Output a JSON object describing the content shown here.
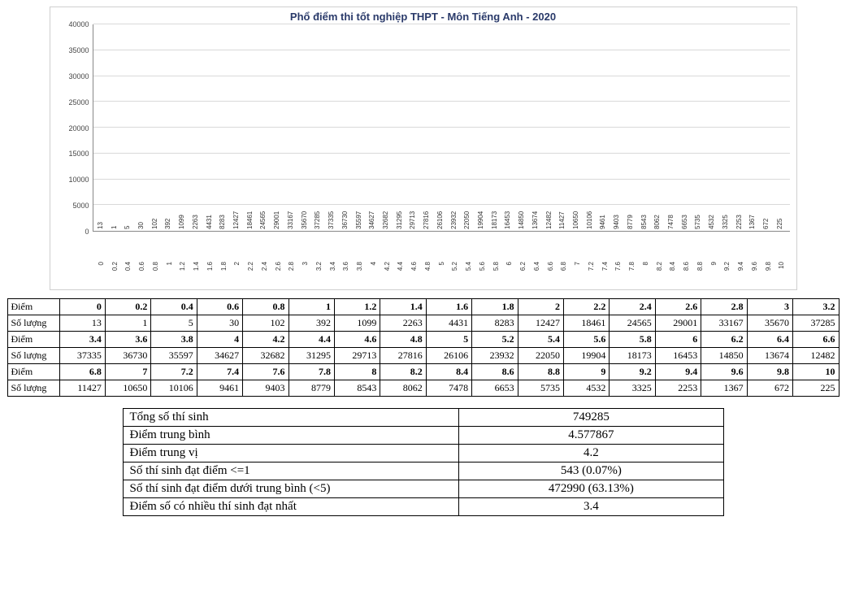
{
  "chart": {
    "title": "Phổ điểm thi tốt nghiệp THPT - Môn Tiếng Anh - 2020",
    "type": "bar",
    "bar_color": "#3f6db5",
    "grid_color": "#d9d9d9",
    "axis_color": "#888888",
    "title_color": "#2a3a6a",
    "background_color": "#ffffff",
    "title_fontsize": 13,
    "label_fontsize": 8,
    "ylim": [
      0,
      40000
    ],
    "ytick_step": 5000,
    "yticks": [
      "0",
      "5000",
      "10000",
      "15000",
      "20000",
      "25000",
      "30000",
      "35000",
      "40000"
    ],
    "x_categories": [
      "0",
      "0.2",
      "0.4",
      "0.6",
      "0.8",
      "1",
      "1.2",
      "1.4",
      "1.6",
      "1.8",
      "2",
      "2.2",
      "2.4",
      "2.6",
      "2.8",
      "3",
      "3.2",
      "3.4",
      "3.6",
      "3.8",
      "4",
      "4.2",
      "4.4",
      "4.6",
      "4.8",
      "5",
      "5.2",
      "5.4",
      "5.6",
      "5.8",
      "6",
      "6.2",
      "6.4",
      "6.6",
      "6.8",
      "7",
      "7.2",
      "7.4",
      "7.6",
      "7.8",
      "8",
      "8.2",
      "8.4",
      "8.6",
      "8.8",
      "9",
      "9.2",
      "9.4",
      "9.6",
      "9.8",
      "10"
    ],
    "values": [
      13,
      1,
      5,
      30,
      102,
      392,
      1099,
      2263,
      4431,
      8283,
      12427,
      18461,
      24565,
      29001,
      33167,
      35670,
      37285,
      37335,
      36730,
      35597,
      34627,
      32682,
      31295,
      29713,
      27816,
      26106,
      23932,
      22050,
      19904,
      18173,
      16453,
      14850,
      13674,
      12482,
      11427,
      10650,
      10106,
      9461,
      9403,
      8779,
      8543,
      8062,
      7478,
      6653,
      5735,
      4532,
      3325,
      2253,
      1367,
      672,
      225
    ]
  },
  "data_table": {
    "row_labels": {
      "score": "Điểm",
      "count": "Số lượng"
    },
    "groups": [
      {
        "scores": [
          "0",
          "0.2",
          "0.4",
          "0.6",
          "0.8",
          "1",
          "1.2",
          "1.4",
          "1.6",
          "1.8",
          "2",
          "2.2",
          "2.4",
          "2.6",
          "2.8",
          "3",
          "3.2"
        ],
        "counts": [
          "13",
          "1",
          "5",
          "30",
          "102",
          "392",
          "1099",
          "2263",
          "4431",
          "8283",
          "12427",
          "18461",
          "24565",
          "29001",
          "33167",
          "35670",
          "37285"
        ]
      },
      {
        "scores": [
          "3.4",
          "3.6",
          "3.8",
          "4",
          "4.2",
          "4.4",
          "4.6",
          "4.8",
          "5",
          "5.2",
          "5.4",
          "5.6",
          "5.8",
          "6",
          "6.2",
          "6.4",
          "6.6"
        ],
        "counts": [
          "37335",
          "36730",
          "35597",
          "34627",
          "32682",
          "31295",
          "29713",
          "27816",
          "26106",
          "23932",
          "22050",
          "19904",
          "18173",
          "16453",
          "14850",
          "13674",
          "12482"
        ]
      },
      {
        "scores": [
          "6.8",
          "7",
          "7.2",
          "7.4",
          "7.6",
          "7.8",
          "8",
          "8.2",
          "8.4",
          "8.6",
          "8.8",
          "9",
          "9.2",
          "9.4",
          "9.6",
          "9.8",
          "10"
        ],
        "counts": [
          "11427",
          "10650",
          "10106",
          "9461",
          "9403",
          "8779",
          "8543",
          "8062",
          "7478",
          "6653",
          "5735",
          "4532",
          "3325",
          "2253",
          "1367",
          "672",
          "225"
        ]
      }
    ]
  },
  "summary": {
    "rows": [
      {
        "label": "Tổng số thí sinh",
        "value": "749285"
      },
      {
        "label": "Điểm trung bình",
        "value": "4.577867"
      },
      {
        "label": "Điểm trung vị",
        "value": "4.2"
      },
      {
        "label": "Số thí sinh đạt điểm <=1",
        "value": "543 (0.07%)"
      },
      {
        "label": "Số thí sinh đạt điểm dưới trung bình (<5)",
        "value": "472990 (63.13%)"
      },
      {
        "label": "Điểm số có nhiều thí sinh đạt nhất",
        "value": "3.4"
      }
    ]
  }
}
